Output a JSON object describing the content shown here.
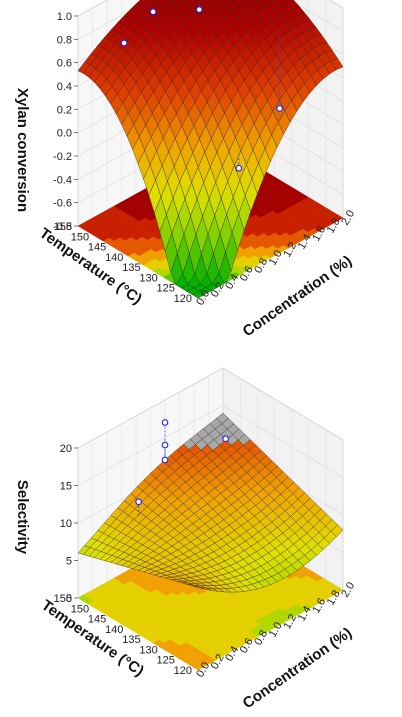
{
  "chart_data": [
    {
      "type": "surface3d",
      "zlabel": "Xylan conversion",
      "xlabel": "Concentration (%)",
      "ylabel": "Temperature (°C)",
      "x_ticks": [
        "0.0",
        "0.2",
        "0.4",
        "0.6",
        "0.8",
        "1.0",
        "1.2",
        "1.4",
        "1.6",
        "1.8",
        "2.0"
      ],
      "y_ticks": [
        "120",
        "125",
        "130",
        "135",
        "140",
        "145",
        "150",
        "155"
      ],
      "z_ticks": [
        "-0.8",
        "-0.6",
        "-0.4",
        "-0.2",
        "0.0",
        "0.2",
        "0.4",
        "0.6",
        "0.8",
        "1.0"
      ],
      "xlim": [
        0,
        2.0
      ],
      "ylim": [
        120,
        155
      ],
      "zlim": [
        -0.8,
        1.0
      ],
      "surface_peak": {
        "x": 1.4,
        "y": 145,
        "z": 0.95
      },
      "surface_corners": {
        "x0_y120": -0.8,
        "x2_y120": 0.2,
        "x0_y155": 0.2,
        "x2_y155": 0.6
      },
      "colormap": [
        "#00b000",
        "#80d000",
        "#e0e000",
        "#f0a000",
        "#e04000",
        "#b00000",
        "#800000"
      ],
      "points": [
        {
          "x": 1.8,
          "y": 150,
          "z": 0.97
        },
        {
          "x": 1.0,
          "y": 155,
          "z": 0.95
        },
        {
          "x": 0.8,
          "y": 150,
          "z": 0.85
        },
        {
          "x": 1.2,
          "y": 145,
          "z": 0.82
        },
        {
          "x": 0.4,
          "y": 150,
          "z": 0.72
        },
        {
          "x": 1.6,
          "y": 130,
          "z": 0.1
        },
        {
          "x": 0.8,
          "y": 125,
          "z": -0.05
        }
      ]
    },
    {
      "type": "surface3d",
      "zlabel": "Selectivity",
      "xlabel": "Concentration (%)",
      "ylabel": "Temperature (°C)",
      "x_ticks": [
        "0.0",
        "0.2",
        "0.4",
        "0.6",
        "0.8",
        "1.0",
        "1.2",
        "1.4",
        "1.6",
        "1.8",
        "2.0"
      ],
      "y_ticks": [
        "120",
        "125",
        "130",
        "135",
        "140",
        "145",
        "150",
        "155"
      ],
      "z_ticks": [
        "0",
        "5",
        "10",
        "15",
        "20"
      ],
      "xlim": [
        0,
        2.0
      ],
      "ylim": [
        120,
        155
      ],
      "zlim": [
        0,
        20
      ],
      "colormap": [
        "#00b000",
        "#80d000",
        "#e0e000",
        "#f0a000",
        "#e04000",
        "#b00000",
        "#a0a0a0"
      ],
      "points": [
        {
          "x": 1.2,
          "y": 155,
          "z": 17
        },
        {
          "x": 1.2,
          "y": 155,
          "z": 14
        },
        {
          "x": 1.8,
          "y": 150,
          "z": 13
        },
        {
          "x": 0.6,
          "y": 150,
          "z": 11
        },
        {
          "x": 1.2,
          "y": 155,
          "z": 12
        }
      ]
    }
  ]
}
